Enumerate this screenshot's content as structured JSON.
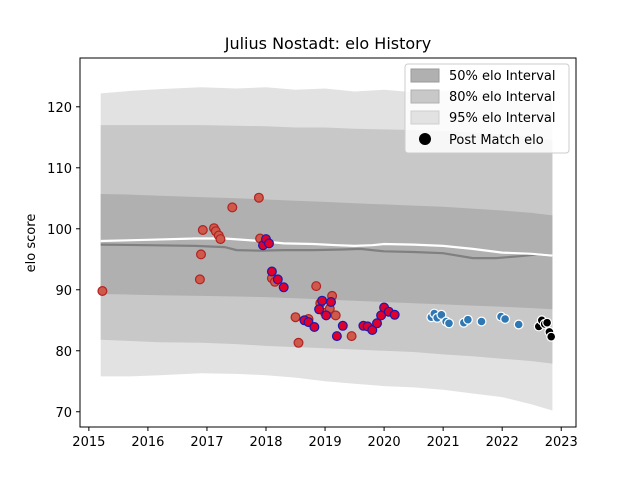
{
  "chart_data": {
    "type": "scatter",
    "title": "Julius Nostadt: elo History",
    "xlabel": "",
    "ylabel": "elo score",
    "xlim": [
      2014.85,
      2023.25
    ],
    "ylim": [
      67.5,
      128
    ],
    "x_ticks": [
      2015,
      2016,
      2017,
      2018,
      2019,
      2020,
      2021,
      2022,
      2023
    ],
    "y_ticks": [
      70,
      80,
      90,
      100,
      110,
      120
    ],
    "grid": false,
    "legend_position": "top-right",
    "legend": [
      {
        "label": "50% elo Interval",
        "color": "#b0b0b0",
        "kind": "patch"
      },
      {
        "label": "80% elo Interval",
        "color": "#c8c8c8",
        "kind": "patch"
      },
      {
        "label": "95% elo Interval",
        "color": "#e2e2e2",
        "kind": "patch"
      },
      {
        "label": "Post Match elo",
        "color": "#000000",
        "kind": "marker"
      }
    ],
    "bands": {
      "x": [
        2015.2,
        2015.7,
        2016.2,
        2016.9,
        2017.5,
        2018.0,
        2018.5,
        2019.0,
        2019.5,
        2020.0,
        2020.5,
        2021.0,
        2021.5,
        2022.0,
        2022.5,
        2022.85
      ],
      "p95_upper": [
        122.2,
        122.6,
        122.9,
        123.2,
        123.0,
        123.2,
        122.8,
        123.0,
        122.5,
        122.8,
        122.4,
        122.6,
        122.3,
        122.4,
        121.9,
        121.5
      ],
      "p95_lower": [
        75.8,
        75.8,
        76.0,
        76.3,
        76.2,
        76.0,
        75.6,
        75.0,
        74.6,
        74.2,
        74.0,
        73.6,
        73.0,
        72.4,
        71.2,
        70.2
      ],
      "p80_upper": [
        117.0,
        117.0,
        117.0,
        117.0,
        116.9,
        116.8,
        116.6,
        116.6,
        116.4,
        116.3,
        116.2,
        116.0,
        115.8,
        115.5,
        115.0,
        114.5
      ],
      "p80_lower": [
        81.8,
        81.6,
        81.4,
        81.3,
        81.1,
        80.8,
        80.6,
        80.4,
        80.2,
        80.0,
        79.8,
        79.4,
        79.1,
        78.7,
        78.3,
        77.9
      ],
      "p50_upper": [
        105.7,
        105.6,
        105.4,
        105.2,
        105.0,
        104.8,
        104.6,
        104.4,
        104.2,
        104.0,
        103.8,
        103.6,
        103.3,
        103.0,
        102.6,
        102.2
      ],
      "p50_lower": [
        89.3,
        89.2,
        89.1,
        89.0,
        88.9,
        88.8,
        88.6,
        88.4,
        88.2,
        88.0,
        87.8,
        87.6,
        87.4,
        87.2,
        87.0,
        86.8
      ]
    },
    "series": [
      {
        "color": "#808080",
        "kind": "line",
        "x": [
          2015.2,
          2016.0,
          2016.8,
          2017.3,
          2017.5,
          2017.9,
          2018.3,
          2018.8,
          2019.3,
          2019.6,
          2019.8,
          2020.0,
          2020.5,
          2021.0,
          2021.5,
          2021.9,
          2022.3,
          2022.6,
          2022.85
        ],
        "values": [
          97.4,
          97.3,
          97.2,
          97.0,
          96.5,
          96.4,
          96.5,
          96.5,
          96.6,
          96.7,
          96.5,
          96.3,
          96.2,
          96.0,
          95.2,
          95.2,
          95.5,
          95.8,
          95.6
        ]
      },
      {
        "color": "#ffffff",
        "kind": "line",
        "x": [
          2015.2,
          2016.0,
          2016.8,
          2017.3,
          2017.9,
          2018.3,
          2018.8,
          2019.2,
          2019.5,
          2019.8,
          2020.0,
          2020.5,
          2021.0,
          2021.5,
          2022.0,
          2022.5,
          2022.85
        ],
        "values": [
          98.0,
          98.2,
          98.4,
          98.4,
          98.0,
          97.6,
          97.5,
          97.3,
          97.2,
          97.3,
          97.5,
          97.4,
          97.2,
          96.7,
          96.1,
          95.9,
          95.6
        ]
      },
      {
        "color": "#cd5a4a",
        "edge": "#b22222",
        "kind": "points",
        "x": [
          2015.23,
          2016.88,
          2016.9,
          2016.93,
          2017.12,
          2017.15,
          2017.2,
          2017.23,
          2017.43,
          2017.88,
          2017.9,
          2018.1,
          2018.15,
          2018.5,
          2018.55,
          2018.72,
          2018.85,
          2018.92,
          2019.0,
          2019.08,
          2019.12,
          2019.18,
          2019.45
        ],
        "values": [
          89.8,
          91.7,
          95.8,
          99.8,
          100.1,
          99.6,
          98.9,
          98.3,
          103.5,
          105.1,
          98.4,
          91.9,
          91.3,
          85.5,
          81.3,
          85.2,
          90.6,
          87.8,
          86.2,
          86.9,
          89.0,
          85.8,
          82.4
        ]
      },
      {
        "color": "#e0002a",
        "edge": "#1a1ab0",
        "kind": "points",
        "x": [
          2017.95,
          2018.0,
          2018.05,
          2018.1,
          2018.2,
          2018.3,
          2018.65,
          2018.72,
          2018.82,
          2018.9,
          2018.95,
          2019.02,
          2019.1,
          2019.2,
          2019.3,
          2019.65,
          2019.72,
          2019.8,
          2019.88,
          2019.95,
          2020.0,
          2020.08,
          2020.18
        ],
        "values": [
          97.3,
          98.3,
          97.6,
          93.0,
          91.7,
          90.4,
          85.0,
          84.7,
          83.9,
          86.8,
          88.2,
          85.8,
          88.0,
          82.4,
          84.1,
          84.1,
          84.0,
          83.4,
          84.5,
          85.8,
          87.1,
          86.4,
          85.9
        ]
      },
      {
        "color": "#2f78b3",
        "edge": "#ffffff",
        "kind": "points",
        "x": [
          2020.8,
          2020.85,
          2020.9,
          2020.97,
          2021.05,
          2021.1,
          2021.35,
          2021.42,
          2021.65,
          2021.98,
          2022.05,
          2022.28
        ],
        "values": [
          85.5,
          86.1,
          85.4,
          85.9,
          84.8,
          84.5,
          84.6,
          85.1,
          84.8,
          85.6,
          85.2,
          84.3
        ]
      },
      {
        "color": "#000000",
        "edge": "#ffffff",
        "kind": "points",
        "x": [
          2022.62,
          2022.67,
          2022.72,
          2022.76,
          2022.8,
          2022.83
        ],
        "values": [
          84.0,
          85.0,
          84.4,
          84.6,
          83.1,
          82.3
        ]
      }
    ]
  }
}
